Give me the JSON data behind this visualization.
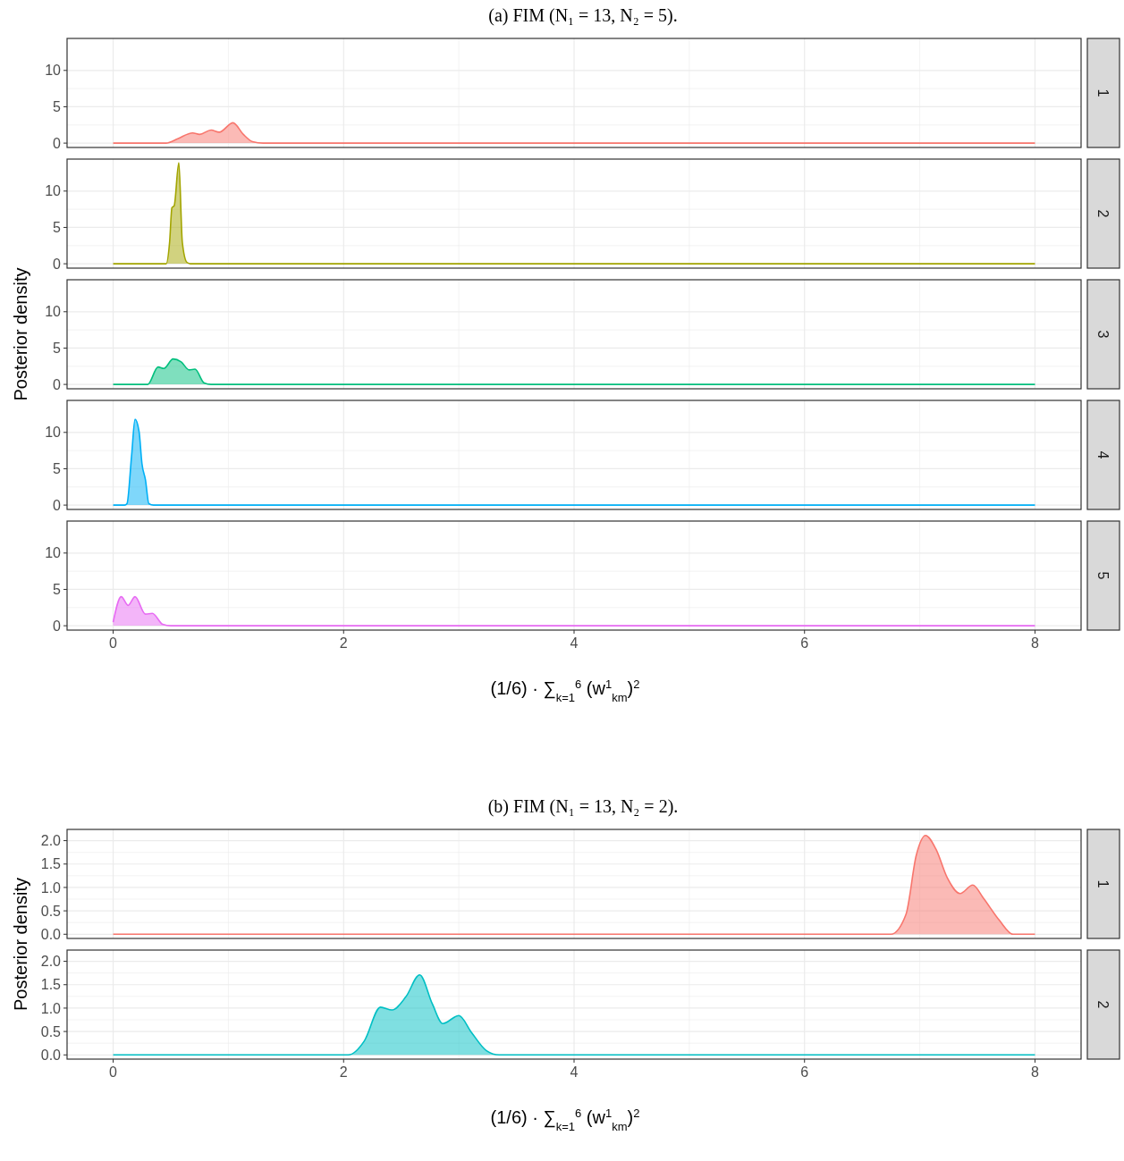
{
  "chart_data": [
    {
      "type": "area",
      "title": "(a) FIM (N₁ = 13, N₂ = 5).",
      "annotations": [
        "1"
      ],
      "color": "#f8766d",
      "x": [
        0,
        0.4,
        0.46,
        0.56,
        0.69,
        0.75,
        0.85,
        0.92,
        1.04,
        1.13,
        1.21,
        1.3,
        8
      ],
      "values": [
        0,
        0,
        0,
        0.6,
        1.4,
        1.2,
        1.8,
        1.5,
        2.8,
        1.2,
        0.2,
        0,
        0
      ],
      "xlim": [
        -0.4,
        8.4
      ],
      "xticks": [
        0,
        2,
        4,
        6,
        8
      ],
      "ylim": [
        -0.6,
        14.4
      ],
      "yticks": [
        0,
        5,
        10
      ],
      "grid": true,
      "tick_labels": "y"
    },
    {
      "type": "area",
      "annotations": [
        "2"
      ],
      "color": "#a3a500",
      "x": [
        0,
        0.46,
        0.49,
        0.51,
        0.53,
        0.57,
        0.6,
        0.64,
        0.67,
        8
      ],
      "values": [
        0,
        0,
        3,
        7.7,
        8,
        13.9,
        3,
        0.2,
        0,
        0
      ],
      "xlim": [
        -0.4,
        8.4
      ],
      "xticks": [
        0,
        2,
        4,
        6,
        8
      ],
      "ylim": [
        -0.6,
        14.4
      ],
      "yticks": [
        0,
        5,
        10
      ],
      "grid": true,
      "tick_labels": "y"
    },
    {
      "type": "area",
      "annotations": [
        "3"
      ],
      "ylabel": "Posterior density",
      "color": "#00bf7d",
      "x": [
        0,
        0.3,
        0.39,
        0.44,
        0.52,
        0.59,
        0.66,
        0.71,
        0.79,
        0.85,
        8
      ],
      "values": [
        0,
        0,
        2.4,
        2.2,
        3.5,
        3.1,
        2,
        2.1,
        0.2,
        0,
        0
      ],
      "xlim": [
        -0.4,
        8.4
      ],
      "xticks": [
        0,
        2,
        4,
        6,
        8
      ],
      "ylim": [
        -0.6,
        14.4
      ],
      "yticks": [
        0,
        5,
        10
      ],
      "grid": true,
      "tick_labels": "y"
    },
    {
      "type": "area",
      "annotations": [
        "4"
      ],
      "color": "#00b0f6",
      "x": [
        0,
        0.1,
        0.12,
        0.16,
        0.19,
        0.225,
        0.25,
        0.28,
        0.31,
        0.35,
        8
      ],
      "values": [
        0,
        0,
        0.2,
        6.8,
        11.8,
        10.1,
        5.7,
        3.5,
        0.2,
        0,
        0
      ],
      "xlim": [
        -0.4,
        8.4
      ],
      "xticks": [
        0,
        2,
        4,
        6,
        8
      ],
      "ylim": [
        -0.6,
        14.4
      ],
      "yticks": [
        0,
        5,
        10
      ],
      "grid": true,
      "tick_labels": "y"
    },
    {
      "type": "area",
      "annotations": [
        "5"
      ],
      "xlabel": "(1/6) · ∑$_{k=1}$$^{6}$ (w$^{1}$$_{km}$)$^{2}$",
      "color": "#e76bf3",
      "x": [
        0,
        0.07,
        0.13,
        0.19,
        0.28,
        0.34,
        0.43,
        0.5,
        8
      ],
      "values": [
        0.5,
        4,
        2.8,
        4,
        1.6,
        1.7,
        0.2,
        0,
        0
      ],
      "xlim": [
        -0.4,
        8.4
      ],
      "xticks": [
        0,
        2,
        4,
        6,
        8
      ],
      "ylim": [
        -0.6,
        14.4
      ],
      "yticks": [
        0,
        5,
        10
      ],
      "grid": true
    },
    {
      "type": "area",
      "title": "(b) FIM (N₁ = 13, N₂ = 2).",
      "annotations": [
        "1"
      ],
      "ylabel": "Posterior density",
      "color": "#f8766d",
      "x": [
        0,
        6.75,
        6.88,
        6.97,
        7.05,
        7.14,
        7.24,
        7.35,
        7.46,
        7.55,
        7.69,
        7.81,
        7.9,
        8
      ],
      "values": [
        0,
        0,
        0.42,
        1.69,
        2.11,
        1.82,
        1.2,
        0.87,
        1.05,
        0.78,
        0.3,
        0,
        0,
        0
      ],
      "xlim": [
        -0.4,
        8.4
      ],
      "xticks": [
        0,
        2,
        4,
        6,
        8
      ],
      "ylim": [
        -0.09,
        2.24
      ],
      "yticks": [
        {
          "value": 0,
          "label": "0.0"
        },
        {
          "value": 0.5,
          "label": "0.5"
        },
        {
          "value": 1,
          "label": "1.0"
        },
        {
          "value": 1.5,
          "label": "1.5"
        },
        {
          "value": 2,
          "label": "2.0"
        }
      ],
      "grid": true,
      "tick_labels": "y"
    },
    {
      "type": "area",
      "annotations": [
        "2"
      ],
      "xlabel": "(1/6) · ∑$_{k=1}$$^{6}$ (w$^{1}$$_{km}$)$^{2}$",
      "color": "#00bfc4",
      "x": [
        0,
        2.04,
        2.18,
        2.32,
        2.42,
        2.54,
        2.66,
        2.77,
        2.86,
        3,
        3.11,
        3.24,
        3.35,
        8
      ],
      "values": [
        0,
        0,
        0.3,
        1.02,
        0.96,
        1.24,
        1.71,
        1.09,
        0.67,
        0.84,
        0.48,
        0.09,
        0,
        0
      ],
      "xlim": [
        -0.4,
        8.4
      ],
      "xticks": [
        0,
        2,
        4,
        6,
        8
      ],
      "ylim": [
        -0.09,
        2.24
      ],
      "yticks": [
        {
          "value": 0,
          "label": "0.0"
        },
        {
          "value": 0.5,
          "label": "0.5"
        },
        {
          "value": 1,
          "label": "1.0"
        },
        {
          "value": 1.5,
          "label": "1.5"
        },
        {
          "value": 2,
          "label": "2.0"
        }
      ],
      "grid": true
    }
  ]
}
